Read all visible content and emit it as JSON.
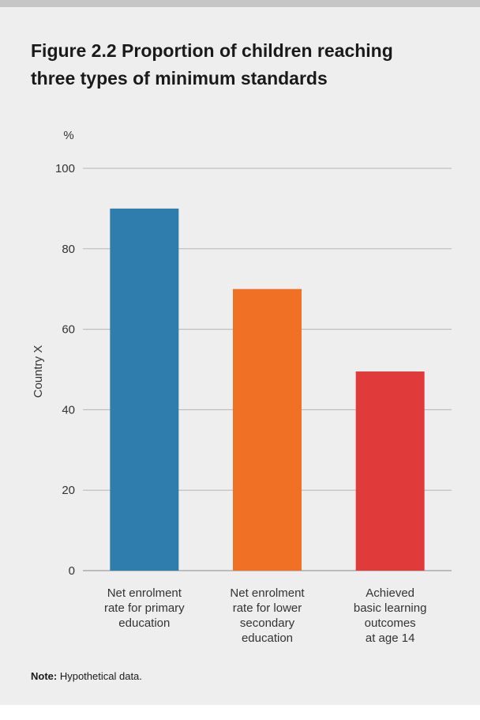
{
  "figure": {
    "title_line1": "Figure 2.2 Proportion of children reaching",
    "title_line2": "three types of minimum standards",
    "note_label": "Note:",
    "note_text": " Hypothetical data."
  },
  "chart_data": {
    "type": "bar",
    "title": "Figure 2.2 Proportion of children reaching three types of minimum standards",
    "unit_label": "%",
    "ylabel": "Country X",
    "xlabel": "",
    "ylim": [
      0,
      100
    ],
    "yticks": [
      0,
      20,
      40,
      60,
      80,
      100
    ],
    "grid": true,
    "categories": [
      [
        "Net enrolment",
        "rate for primary",
        "education"
      ],
      [
        "Net enrolment",
        "rate for lower",
        "secondary",
        "education"
      ],
      [
        "Achieved",
        "basic learning",
        "outcomes",
        "at age 14"
      ]
    ],
    "values": [
      90,
      70,
      49.5
    ],
    "colors": [
      "#2e7dac",
      "#f07025",
      "#e03a3a"
    ]
  }
}
